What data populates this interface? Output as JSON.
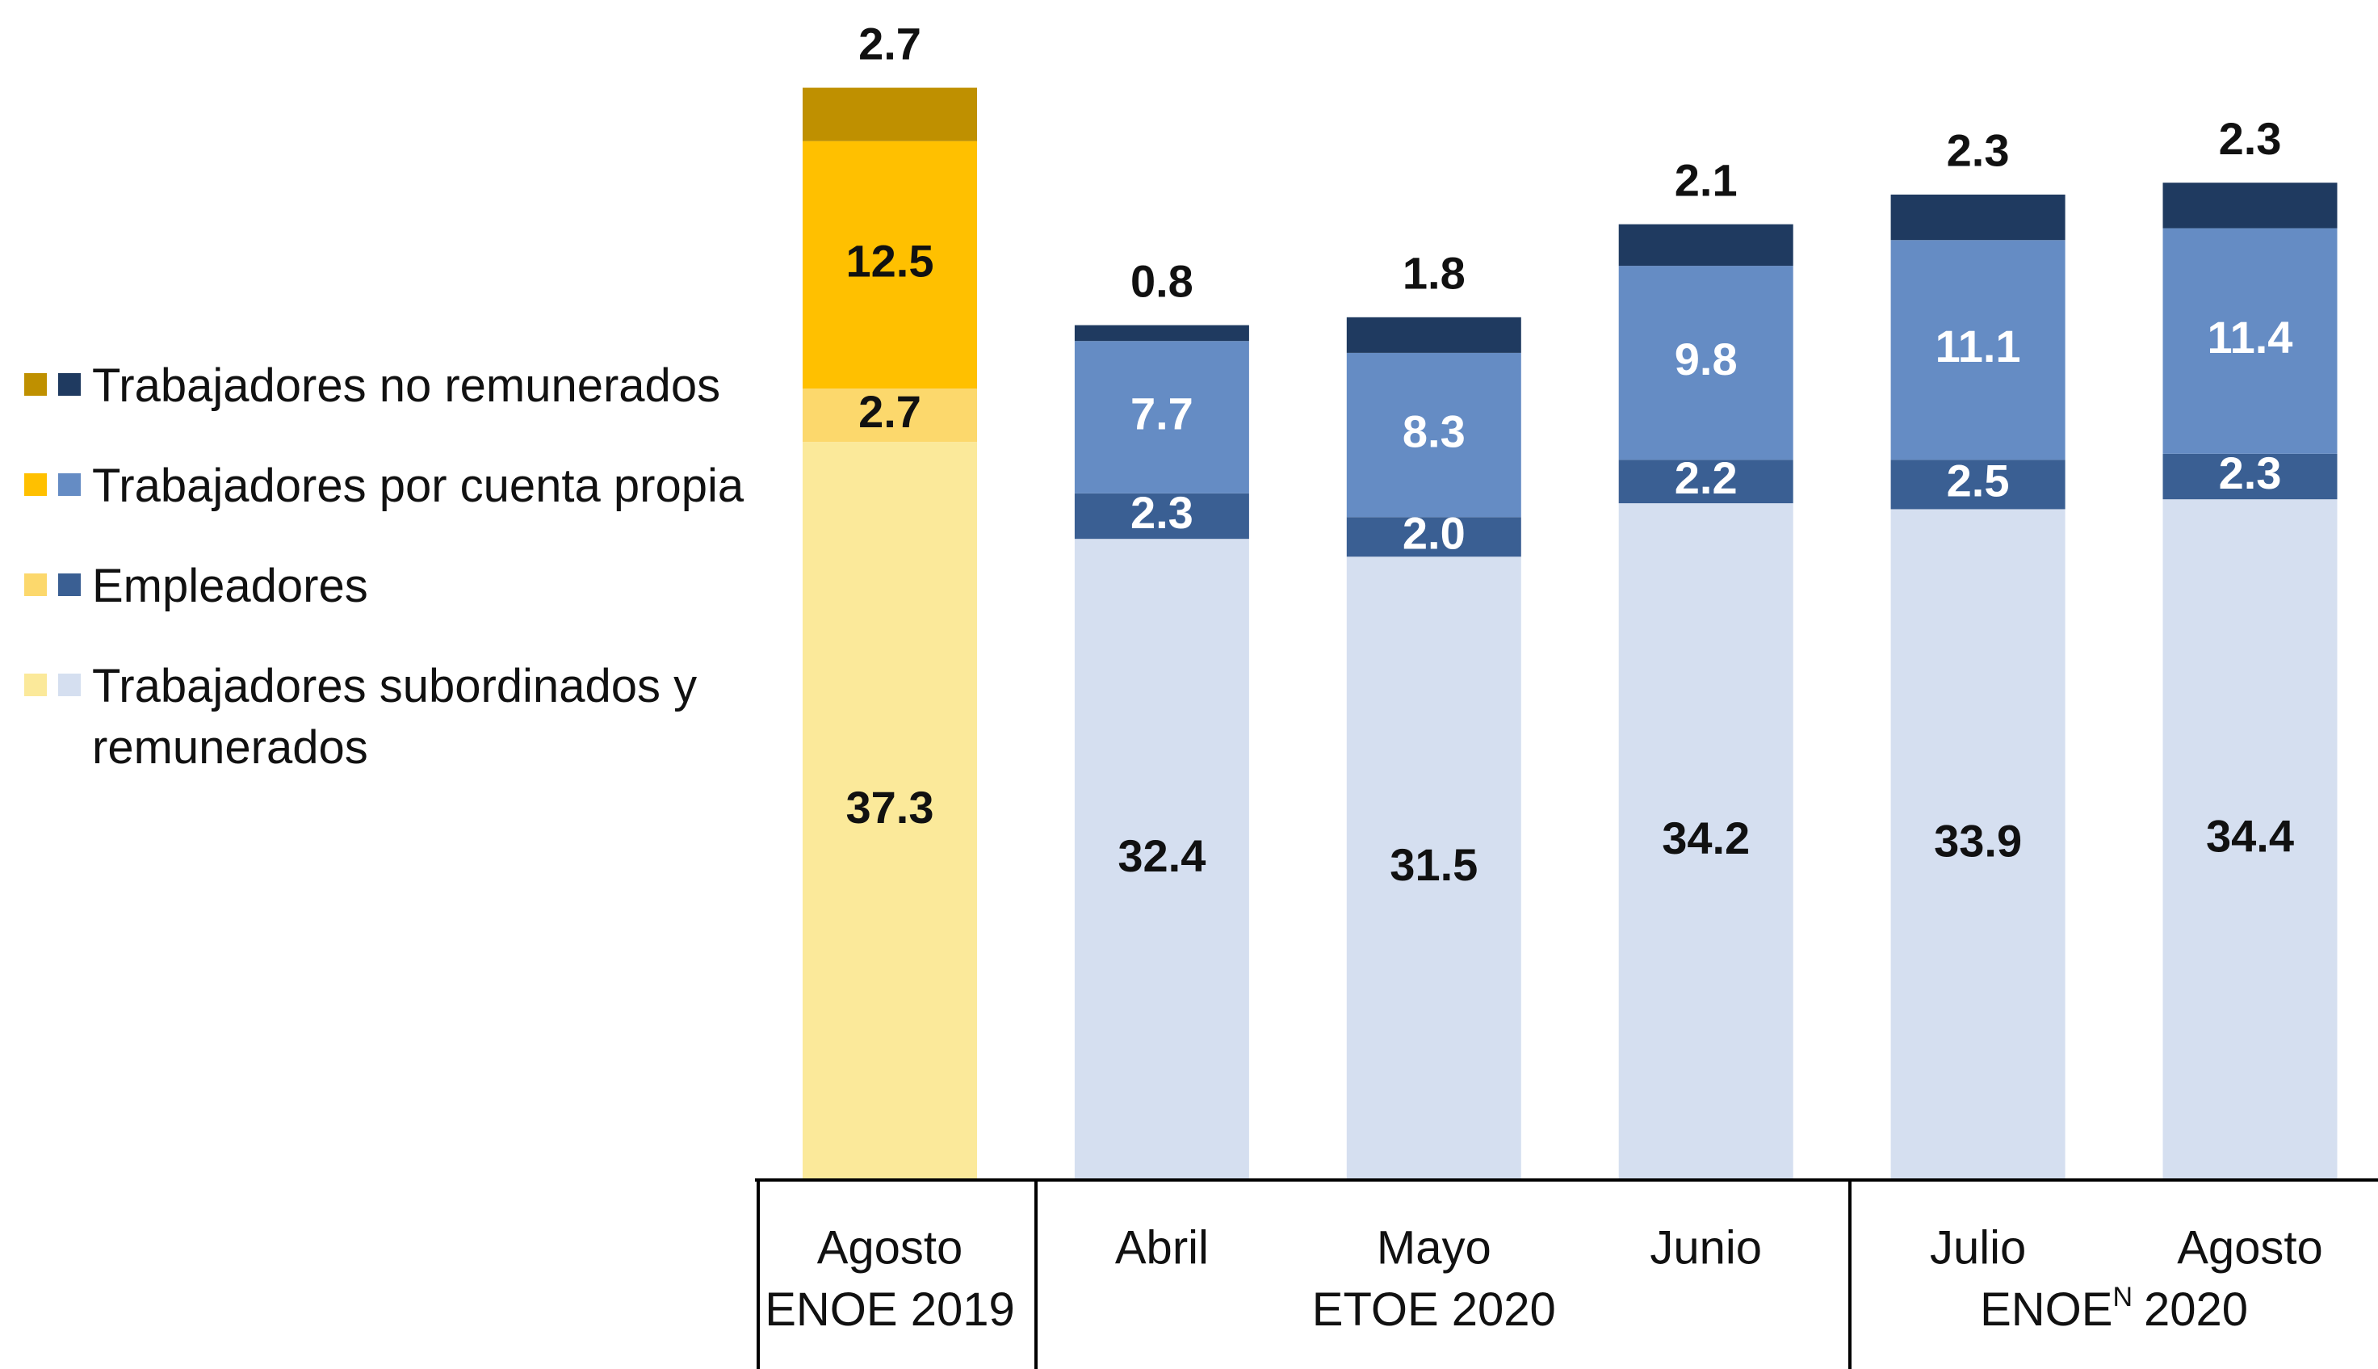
{
  "chart_data": {
    "type": "stacked-bar",
    "categories": [
      "Agosto",
      "Abril",
      "Mayo",
      "Junio",
      "Julio",
      "Agosto"
    ],
    "groups": [
      {
        "label": "ENOE 2019",
        "categories": [
          0
        ]
      },
      {
        "label": "ETOE 2020",
        "categories": [
          1,
          2,
          3
        ]
      },
      {
        "label": "ENOE",
        "sup": "N",
        "label_end": "2020",
        "categories": [
          4,
          5
        ]
      }
    ],
    "series": [
      {
        "name": "Trabajadores subordinados y remunerados",
        "colors": [
          "#fbe99a",
          "#d5dff0",
          "#d5dff0",
          "#d5dff0",
          "#d5dff0",
          "#d5dff0"
        ],
        "label_colors": [
          "#111",
          "#111",
          "#111",
          "#111",
          "#111",
          "#111"
        ],
        "values": [
          37.3,
          32.4,
          31.5,
          34.2,
          33.9,
          34.4
        ],
        "value_labels": [
          "37.3",
          "32.4",
          "31.5",
          "34.2",
          "33.9",
          "34.4"
        ]
      },
      {
        "name": "Empleadores",
        "colors": [
          "#fcd86c",
          "#3a5f93",
          "#3a5f93",
          "#3a5f93",
          "#3a5f93",
          "#3a5f93"
        ],
        "label_colors": [
          "#111",
          "#fff",
          "#fff",
          "#fff",
          "#fff",
          "#fff"
        ],
        "values": [
          2.7,
          2.3,
          2.0,
          2.2,
          2.5,
          2.3
        ],
        "value_labels": [
          "2.7",
          "2.3",
          "2.0",
          "2.2",
          "2.5",
          "2.3"
        ]
      },
      {
        "name": "Trabajadores por cuenta propia",
        "colors": [
          "#ffc000",
          "#658cc4",
          "#658cc4",
          "#658cc4",
          "#658cc4",
          "#658cc4"
        ],
        "label_colors": [
          "#111",
          "#fff",
          "#fff",
          "#fff",
          "#fff",
          "#fff"
        ],
        "values": [
          12.5,
          7.7,
          8.3,
          9.8,
          11.1,
          11.4
        ],
        "value_labels": [
          "12.5",
          "7.7",
          "8.3",
          "9.8",
          "11.1",
          "11.4"
        ]
      },
      {
        "name": "Trabajadores no remunerados",
        "colors": [
          "#bf9000",
          "#1f3a60",
          "#1f3a60",
          "#1f3a60",
          "#1f3a60",
          "#1f3a60"
        ],
        "label_colors": [
          "#111",
          "#111",
          "#111",
          "#111",
          "#111",
          "#111"
        ],
        "label_position": "above",
        "values": [
          2.7,
          0.8,
          1.8,
          2.1,
          2.3,
          2.3
        ],
        "value_labels": [
          "2.7",
          "0.8",
          "1.8",
          "2.1",
          "2.3",
          "2.3"
        ]
      }
    ]
  }
}
